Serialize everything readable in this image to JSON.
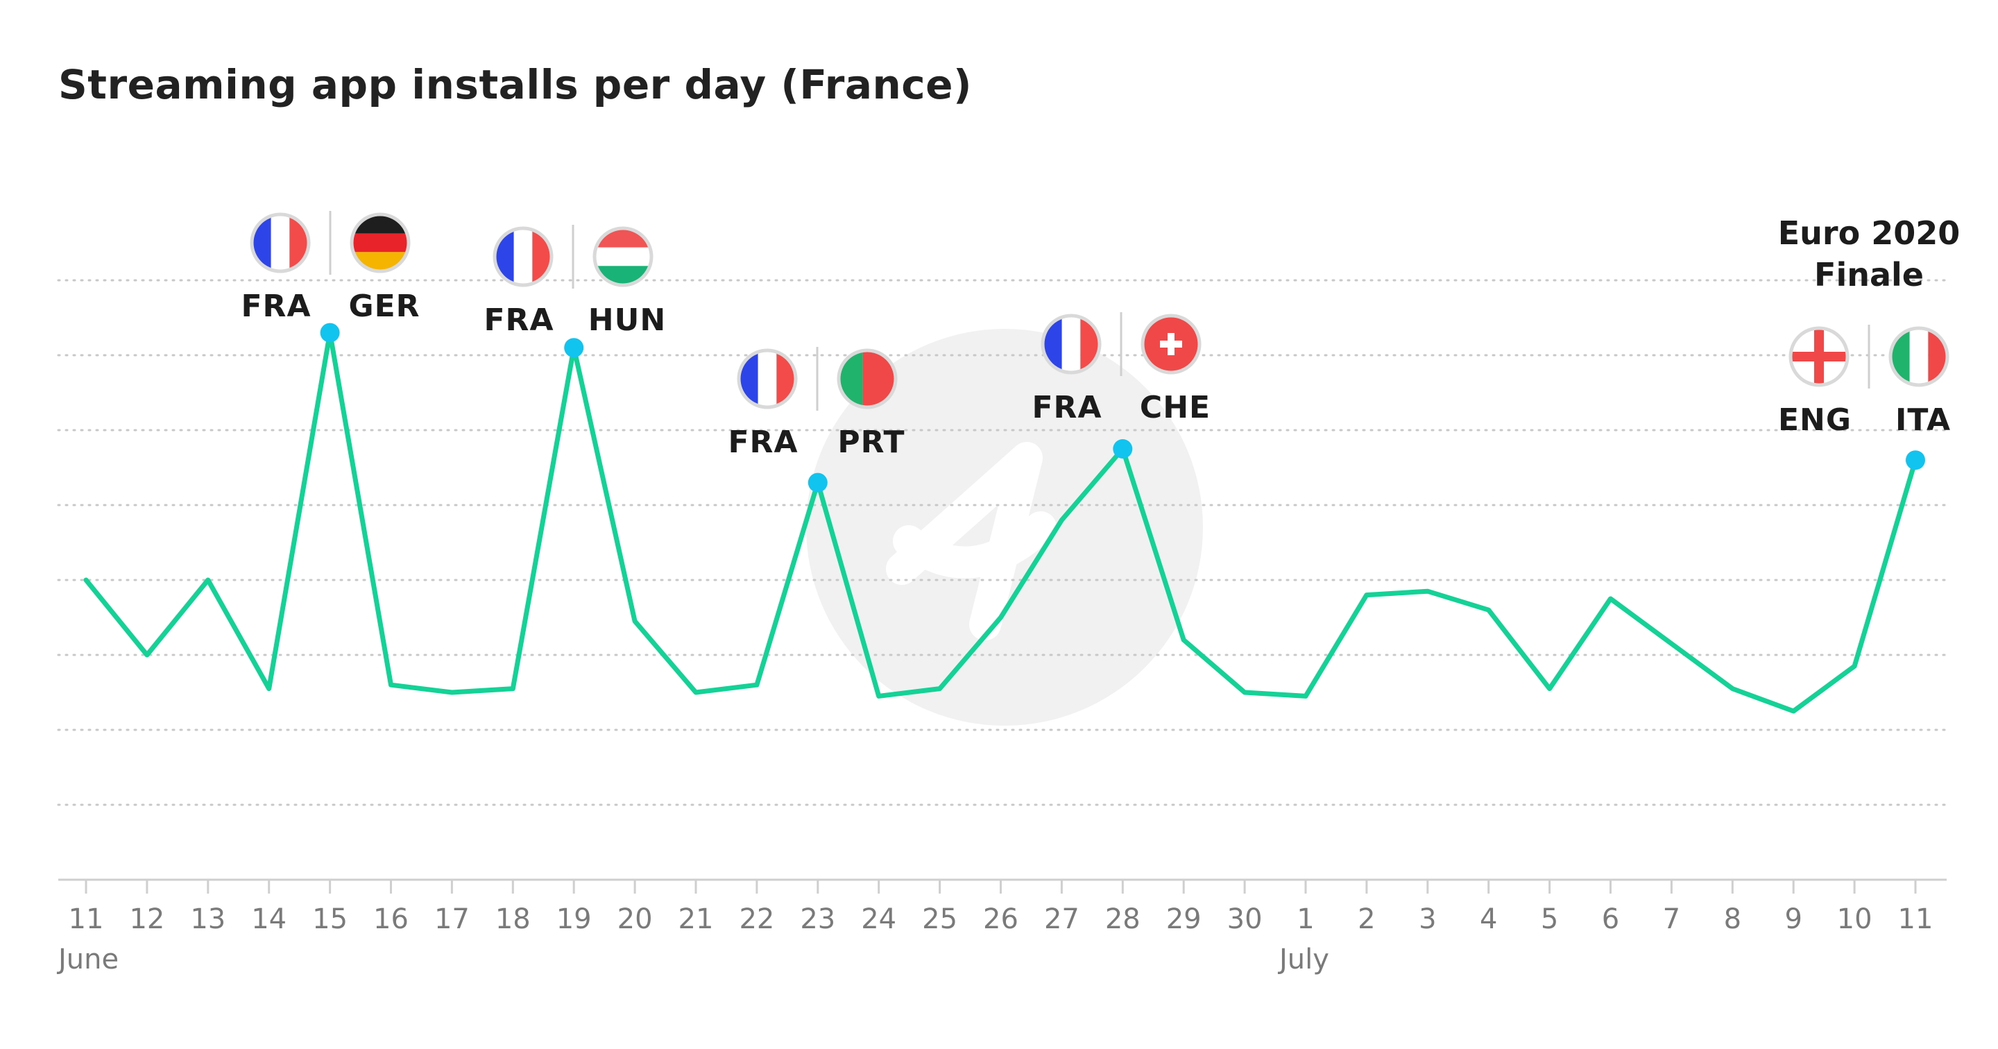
{
  "title": "Streaming app installs per day (France)",
  "colors": {
    "line": "#14d196",
    "marker": "#11c4f0",
    "grid": "#c8c8c8",
    "axis": "#cfcfcf",
    "watermark": "#f1f1f1"
  },
  "chart_data": {
    "type": "line",
    "title": "Streaming app installs per day (France)",
    "xlabel": "",
    "ylabel": "",
    "y_ticks_labeled": false,
    "grid": "horizontal dotted",
    "x_tick_labels": [
      "11",
      "12",
      "13",
      "14",
      "15",
      "16",
      "17",
      "18",
      "19",
      "20",
      "21",
      "22",
      "23",
      "24",
      "25",
      "26",
      "27",
      "28",
      "29",
      "30",
      "1",
      "2",
      "3",
      "4",
      "5",
      "6",
      "7",
      "8",
      "9",
      "10",
      "11"
    ],
    "x_dates": [
      "2021-06-11",
      "2021-06-12",
      "2021-06-13",
      "2021-06-14",
      "2021-06-15",
      "2021-06-16",
      "2021-06-17",
      "2021-06-18",
      "2021-06-19",
      "2021-06-20",
      "2021-06-21",
      "2021-06-22",
      "2021-06-23",
      "2021-06-24",
      "2021-06-25",
      "2021-06-26",
      "2021-06-27",
      "2021-06-28",
      "2021-06-29",
      "2021-06-30",
      "2021-07-01",
      "2021-07-02",
      "2021-07-03",
      "2021-07-04",
      "2021-07-05",
      "2021-07-06",
      "2021-07-07",
      "2021-07-08",
      "2021-07-09",
      "2021-07-10",
      "2021-07-11"
    ],
    "month_labels": [
      {
        "label": "June",
        "at_index": 0
      },
      {
        "label": "July",
        "at_index": 20
      }
    ],
    "ylim": [
      0,
      8
    ],
    "series": [
      {
        "values": [
          4.0,
          3.0,
          4.0,
          2.55,
          7.3,
          2.6,
          2.5,
          2.55,
          7.1,
          3.45,
          2.5,
          2.6,
          5.3,
          2.45,
          2.55,
          3.5,
          4.8,
          5.75,
          3.2,
          2.5,
          2.45,
          3.8,
          3.85,
          3.6,
          2.55,
          3.75,
          3.15,
          2.55,
          2.25,
          2.85,
          5.6
        ]
      }
    ],
    "annotations": [
      {
        "index": 4,
        "teams": [
          "FRA",
          "GER"
        ],
        "flags": [
          "france-flag",
          "germany-flag"
        ]
      },
      {
        "index": 8,
        "teams": [
          "FRA",
          "HUN"
        ],
        "flags": [
          "france-flag",
          "hungary-flag"
        ]
      },
      {
        "index": 12,
        "teams": [
          "FRA",
          "PRT"
        ],
        "flags": [
          "france-flag",
          "portugal-flag"
        ]
      },
      {
        "index": 17,
        "teams": [
          "FRA",
          "CHE"
        ],
        "flags": [
          "france-flag",
          "switzerland-flag"
        ]
      },
      {
        "index": 30,
        "label_lines": [
          "Euro 2020",
          "Finale"
        ],
        "teams": [
          "ENG",
          "ITA"
        ],
        "flags": [
          "england-flag",
          "italy-flag"
        ]
      }
    ]
  }
}
